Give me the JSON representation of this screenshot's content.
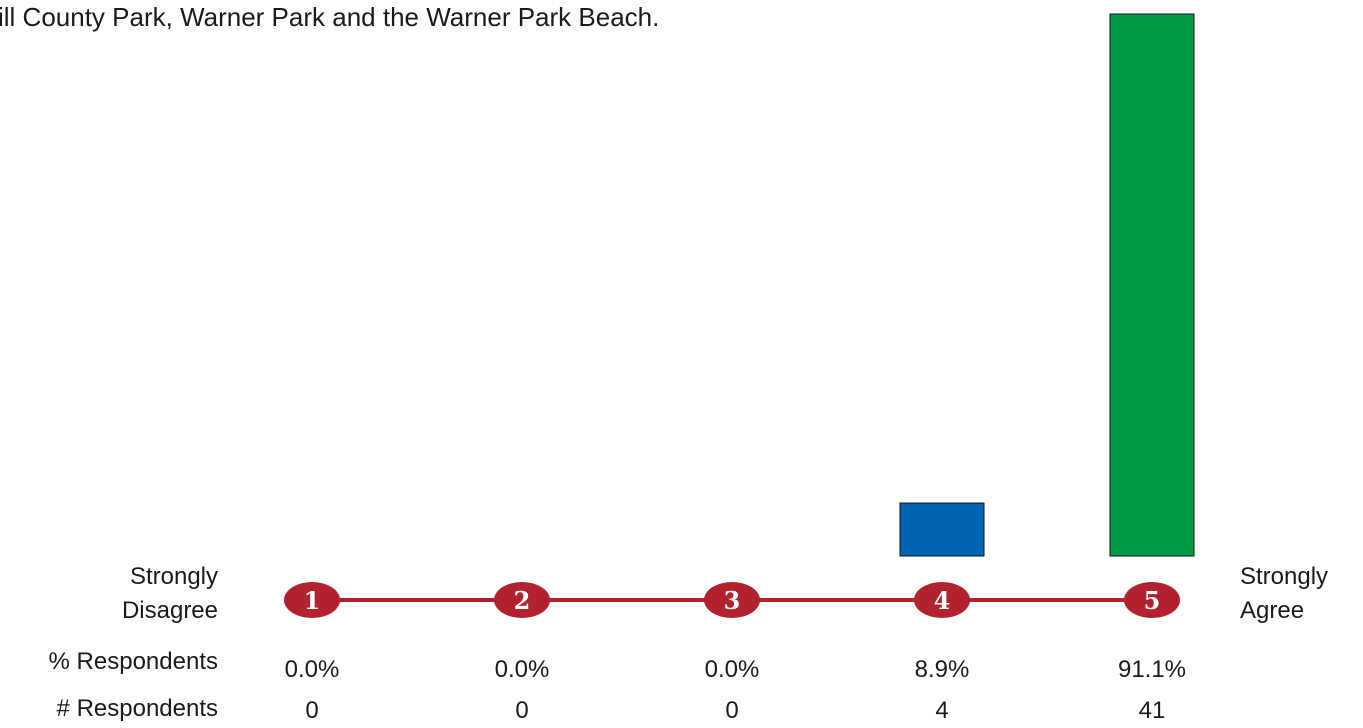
{
  "chart_data": {
    "type": "bar",
    "title": "ill County Park, Warner Park and the Warner Park Beach.",
    "categories": [
      "1",
      "2",
      "3",
      "4",
      "5"
    ],
    "left_label": [
      "Strongly",
      "Disagree"
    ],
    "right_label": [
      "Strongly",
      "Agree"
    ],
    "row_labels": {
      "percent": "% Respondents",
      "count": "# Respondents"
    },
    "percent_labels": [
      "0.0%",
      "0.0%",
      "0.0%",
      "8.9%",
      "91.1%"
    ],
    "values": [
      0.0,
      0.0,
      0.0,
      8.9,
      91.1
    ],
    "counts": [
      0,
      0,
      0,
      4,
      41
    ],
    "bar_colors": [
      "#0066b3",
      "#0066b3",
      "#0066b3",
      "#0066b3",
      "#009a49"
    ],
    "scale_color": "#b1212e",
    "ylim": [
      0,
      91.1
    ]
  }
}
